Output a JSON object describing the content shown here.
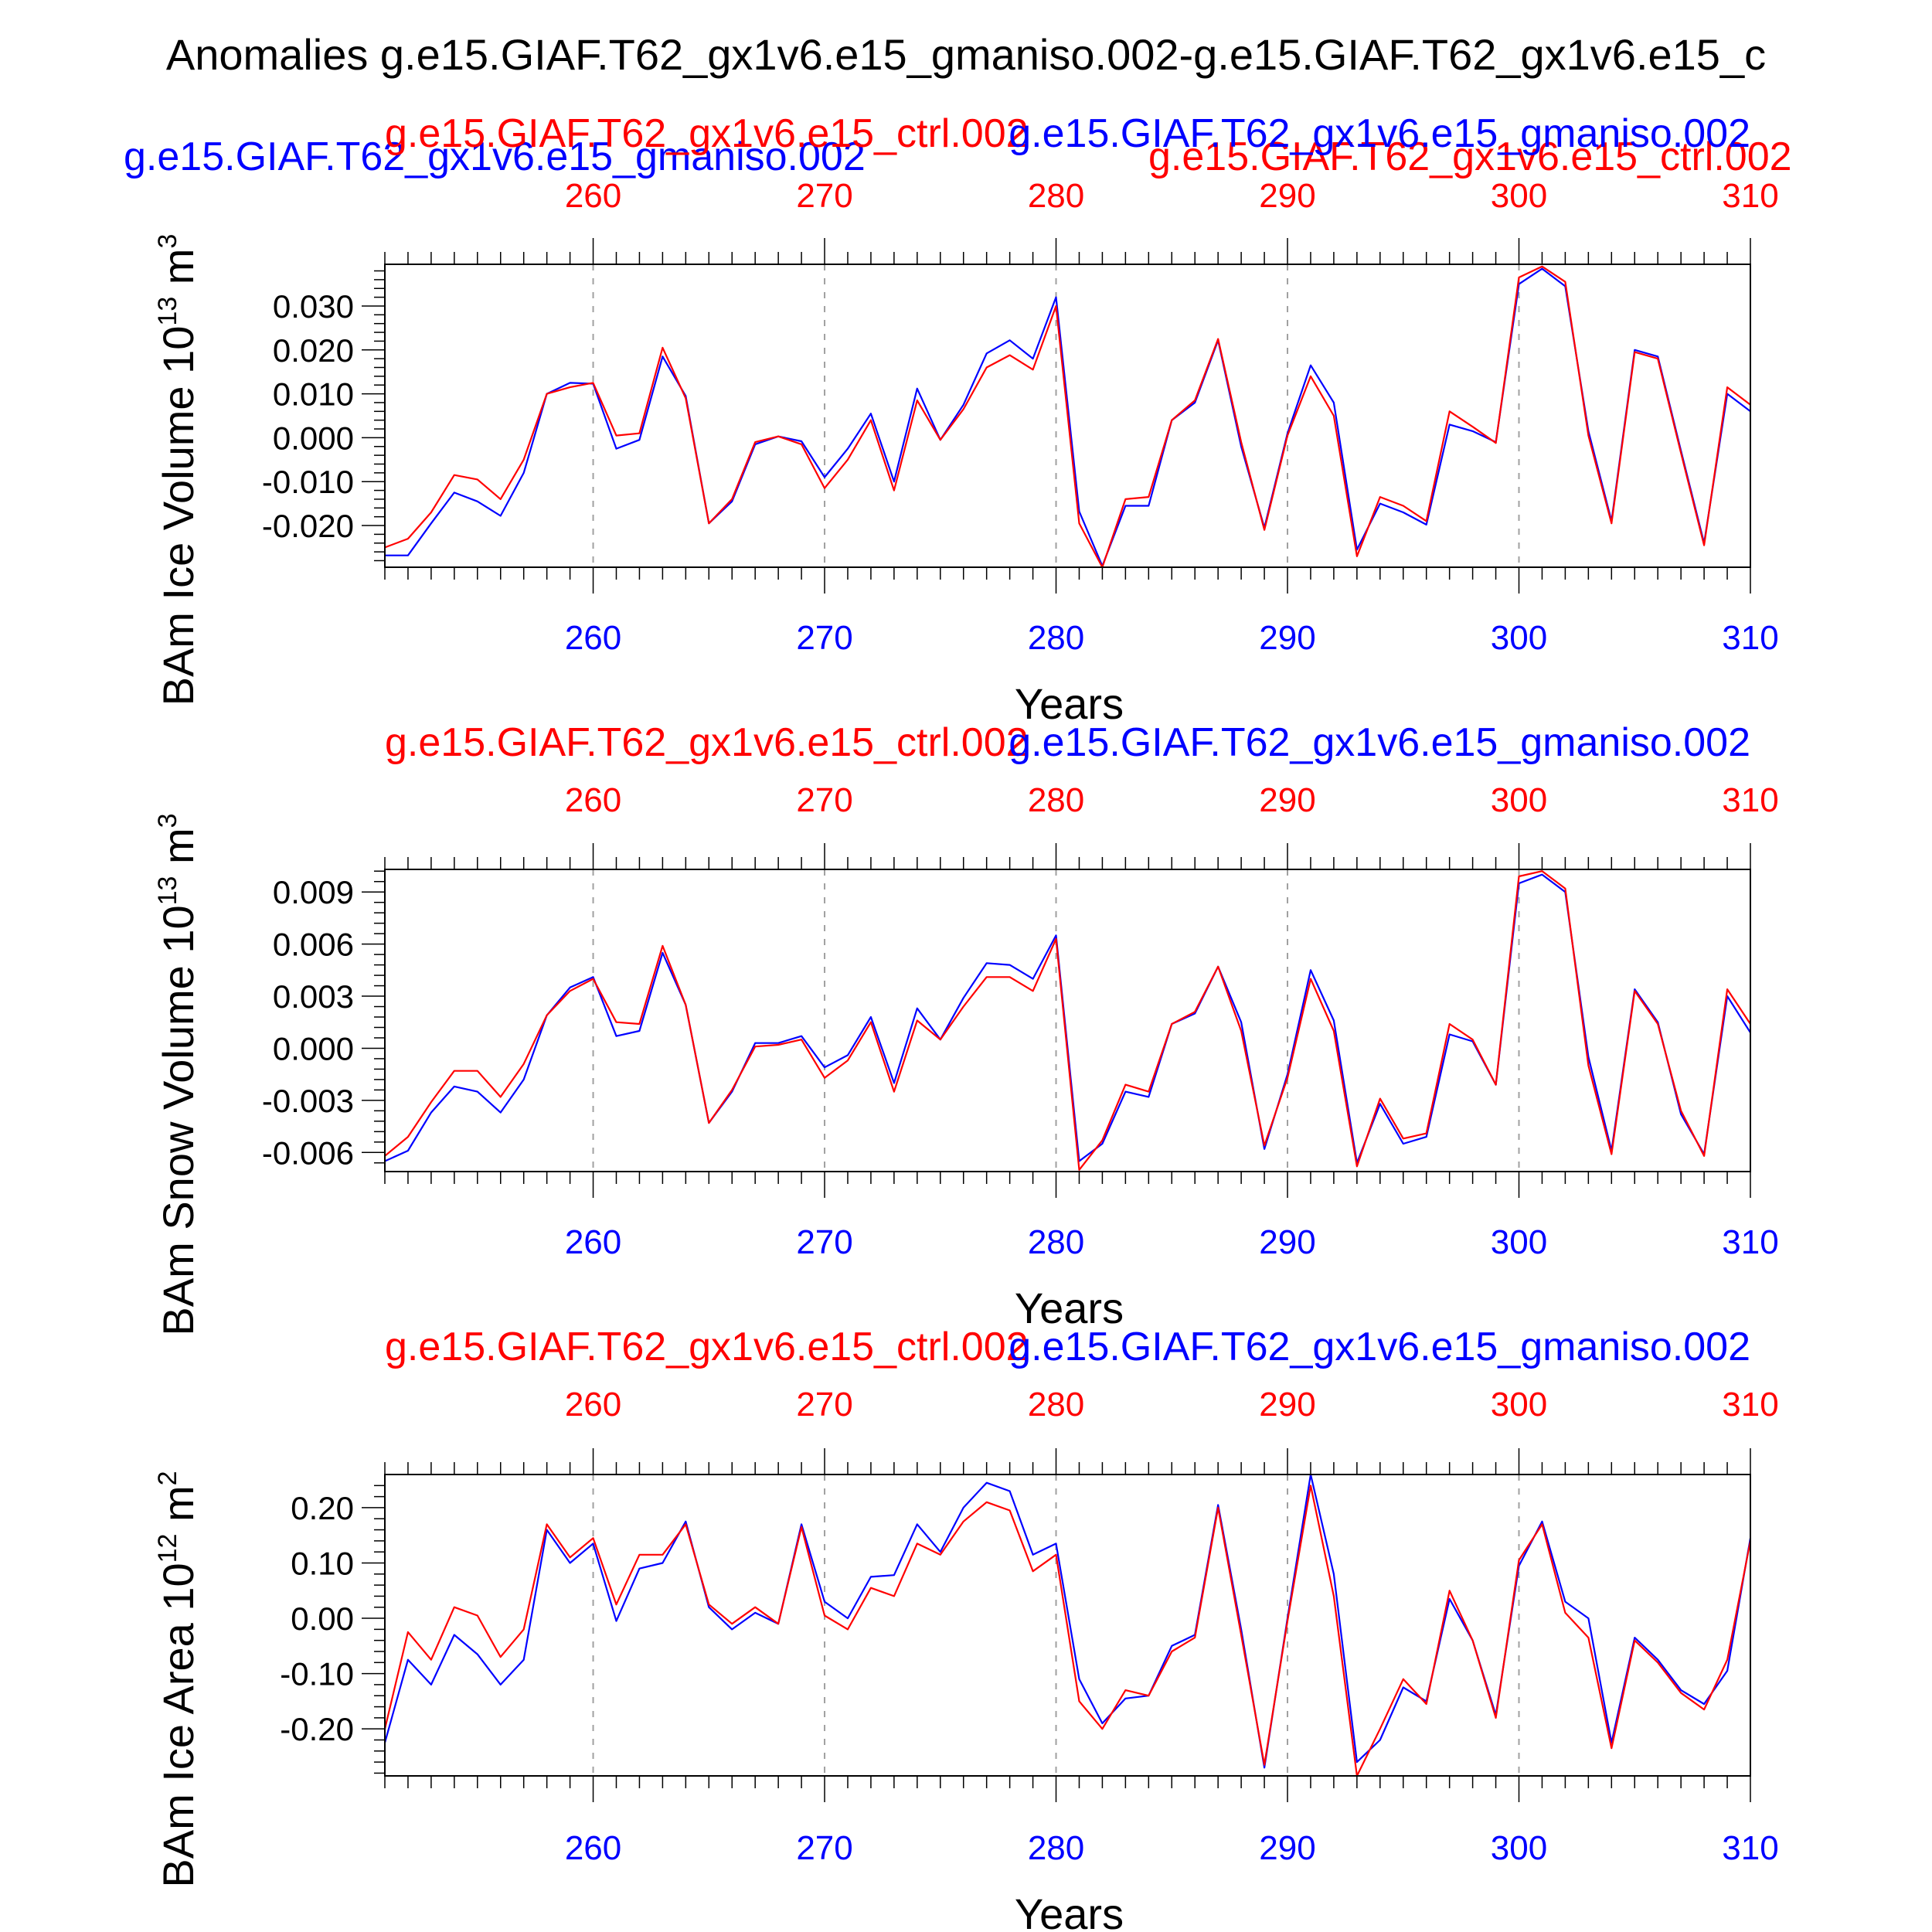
{
  "colors": {
    "series_a": "#0000ff",
    "series_b": "#ff0000",
    "axes": "#000000",
    "grid": "#a0a0a0"
  },
  "figure": {
    "title": "Anomalies g.e15.GIAF.T62_gx1v6.e15_gmaniso.002-g.e15.GIAF.T62_gx1v6.e15_c",
    "subtitle_a": "g.e15.GIAF.T62_gx1v6.e15_gmaniso.002",
    "subtitle_b": "g.e15.GIAF.T62_gx1v6.e15_ctrl.002",
    "panel_label_b": "g.e15.GIAF.T62_gx1v6.e15_ctrl.002",
    "panel_label_a": "g.e15.GIAF.T62_gx1v6.e15_gmaniso.002"
  },
  "chart_data": [
    {
      "type": "line",
      "ylabel": "BAm Ice Volume 10^13 m^3",
      "ylabel_main": "BAm Ice Volume 10",
      "ylabel_exp": "13",
      "ylabel_unit": " m",
      "ylabel_unit_exp": "3",
      "xlabel": "Years",
      "xlim": [
        251,
        310
      ],
      "ylim": [
        -0.0295,
        0.0395
      ],
      "x_ticks": [
        260,
        270,
        280,
        290,
        300,
        310
      ],
      "x_tick_labels": [
        "260",
        "270",
        "280",
        "290",
        "300",
        "310"
      ],
      "y_ticks": [
        -0.02,
        -0.01,
        0.0,
        0.01,
        0.02,
        0.03
      ],
      "y_tick_labels": [
        "-0.020",
        "-0.010",
        "0.000",
        "0.010",
        "0.020",
        "0.030"
      ],
      "y_minor_step": 0.002,
      "x_start": 251,
      "series": [
        {
          "name": "g.e15.GIAF.T62_gx1v6.e15_gmaniso.002",
          "values": [
            -0.0268,
            -0.0268,
            -0.0195,
            -0.0125,
            -0.0145,
            -0.0178,
            -0.008,
            0.01,
            0.0125,
            0.0123,
            -0.0025,
            -0.0005,
            0.0185,
            0.0095,
            -0.0195,
            -0.0145,
            -0.0015,
            0.0003,
            -0.0008,
            -0.009,
            -0.0025,
            0.0055,
            -0.01,
            0.0112,
            -0.0005,
            0.0075,
            0.0192,
            0.0222,
            0.018,
            0.032,
            -0.0168,
            -0.0292,
            -0.0155,
            -0.0155,
            0.004,
            0.008,
            0.0222,
            -0.002,
            -0.0205,
            0.001,
            0.0165,
            0.008,
            -0.0255,
            -0.015,
            -0.017,
            -0.0198,
            0.003,
            0.0015,
            -0.001,
            0.035,
            0.0385,
            0.0345,
            0.0015,
            -0.019,
            0.02,
            0.0185,
            -0.003,
            -0.024,
            0.01,
            0.006
          ]
        },
        {
          "name": "g.e15.GIAF.T62_gx1v6.e15_ctrl.002",
          "values": [
            -0.025,
            -0.023,
            -0.017,
            -0.0085,
            -0.0095,
            -0.014,
            -0.005,
            0.01,
            0.0115,
            0.0125,
            0.0005,
            0.001,
            0.0205,
            0.009,
            -0.0195,
            -0.014,
            -0.001,
            0.0003,
            -0.0015,
            -0.0115,
            -0.005,
            0.004,
            -0.012,
            0.0085,
            -0.0005,
            0.0065,
            0.016,
            0.0188,
            0.0155,
            0.03,
            -0.0195,
            -0.0295,
            -0.014,
            -0.0135,
            0.004,
            0.0085,
            0.0225,
            -0.001,
            -0.021,
            0.0005,
            0.014,
            0.005,
            -0.027,
            -0.0135,
            -0.0155,
            -0.019,
            0.006,
            0.0025,
            -0.0012,
            0.0365,
            0.039,
            0.0355,
            0.0005,
            -0.0195,
            0.0195,
            0.018,
            -0.0035,
            -0.0245,
            0.0115,
            0.0075
          ]
        }
      ]
    },
    {
      "type": "line",
      "ylabel": "BAm Snow Volume 10^13 m^3",
      "ylabel_main": "BAm Snow Volume 10",
      "ylabel_exp": "13",
      "ylabel_unit": " m",
      "ylabel_unit_exp": "3",
      "xlabel": "Years",
      "xlim": [
        251,
        310
      ],
      "ylim": [
        -0.0071,
        0.0103
      ],
      "x_ticks": [
        260,
        270,
        280,
        290,
        300,
        310
      ],
      "x_tick_labels": [
        "260",
        "270",
        "280",
        "290",
        "300",
        "310"
      ],
      "y_ticks": [
        -0.006,
        -0.003,
        0.0,
        0.003,
        0.006,
        0.009
      ],
      "y_tick_labels": [
        "-0.006",
        "-0.003",
        "0.000",
        "0.003",
        "0.006",
        "0.009"
      ],
      "y_minor_step": 0.0006,
      "x_start": 251,
      "series": [
        {
          "name": "g.e15.GIAF.T62_gx1v6.e15_gmaniso.002",
          "values": [
            -0.0065,
            -0.0059,
            -0.0037,
            -0.0022,
            -0.0025,
            -0.0037,
            -0.0018,
            0.0019,
            0.0035,
            0.0041,
            0.0007,
            0.001,
            0.0055,
            0.0025,
            -0.0043,
            -0.0025,
            0.0003,
            0.0003,
            0.0007,
            -0.0011,
            -0.0004,
            0.0018,
            -0.002,
            0.0023,
            0.0005,
            0.0029,
            0.0049,
            0.0048,
            0.004,
            0.0065,
            -0.0065,
            -0.0055,
            -0.0025,
            -0.0028,
            0.0014,
            0.002,
            0.0047,
            0.0015,
            -0.0058,
            -0.0015,
            0.0045,
            0.0016,
            -0.0066,
            -0.0032,
            -0.0055,
            -0.0051,
            0.0008,
            0.0004,
            -0.0021,
            0.0095,
            0.01,
            0.009,
            -0.0005,
            -0.0059,
            0.0034,
            0.0015,
            -0.0038,
            -0.0061,
            0.003,
            0.0009
          ]
        },
        {
          "name": "g.e15.GIAF.T62_gx1v6.e15_ctrl.002",
          "values": [
            -0.0062,
            -0.0051,
            -0.0031,
            -0.0013,
            -0.0013,
            -0.0028,
            -0.0009,
            0.0019,
            0.0033,
            0.004,
            0.0015,
            0.0014,
            0.0059,
            0.0025,
            -0.0043,
            -0.0024,
            0.0001,
            0.0002,
            0.0005,
            -0.0017,
            -0.0007,
            0.0015,
            -0.0025,
            0.0016,
            0.0005,
            0.0024,
            0.0041,
            0.0041,
            0.0033,
            0.0063,
            -0.007,
            -0.0053,
            -0.0021,
            -0.0025,
            0.0014,
            0.0021,
            0.0047,
            0.001,
            -0.0056,
            -0.0017,
            0.004,
            0.001,
            -0.0068,
            -0.0029,
            -0.0052,
            -0.0049,
            0.0014,
            0.0005,
            -0.0021,
            0.0099,
            0.0102,
            0.0092,
            -0.001,
            -0.0061,
            0.0033,
            0.0014,
            -0.0036,
            -0.0062,
            0.0034,
            0.0014
          ]
        }
      ]
    },
    {
      "type": "line",
      "ylabel": "BAm Ice Area 10^12 m^2",
      "ylabel_main": "BAm Ice Area 10",
      "ylabel_exp": "12",
      "ylabel_unit": " m",
      "ylabel_unit_exp": "2",
      "xlabel": "Years",
      "xlim": [
        251,
        310
      ],
      "ylim": [
        -0.285,
        0.26
      ],
      "x_ticks": [
        260,
        270,
        280,
        290,
        300,
        310
      ],
      "x_tick_labels": [
        "260",
        "270",
        "280",
        "290",
        "300",
        "310"
      ],
      "y_ticks": [
        -0.2,
        -0.1,
        0.0,
        0.1,
        0.2
      ],
      "y_tick_labels": [
        "-0.20",
        "-0.10",
        "0.00",
        "0.10",
        "0.20"
      ],
      "y_minor_step": 0.02,
      "x_start": 251,
      "series": [
        {
          "name": "g.e15.GIAF.T62_gx1v6.e15_gmaniso.002",
          "values": [
            -0.225,
            -0.075,
            -0.12,
            -0.03,
            -0.065,
            -0.12,
            -0.075,
            0.16,
            0.1,
            0.135,
            -0.005,
            0.09,
            0.1,
            0.175,
            0.02,
            -0.02,
            0.01,
            -0.01,
            0.17,
            0.03,
            0.0,
            0.075,
            0.078,
            0.17,
            0.12,
            0.2,
            0.245,
            0.23,
            0.115,
            0.135,
            -0.11,
            -0.19,
            -0.145,
            -0.14,
            -0.05,
            -0.03,
            0.205,
            -0.02,
            -0.27,
            0.0,
            0.26,
            0.08,
            -0.26,
            -0.22,
            -0.125,
            -0.15,
            0.035,
            -0.04,
            -0.175,
            0.095,
            0.175,
            0.03,
            0.0,
            -0.225,
            -0.035,
            -0.075,
            -0.13,
            -0.155,
            -0.095,
            0.145
          ]
        },
        {
          "name": "g.e15.GIAF.T62_gx1v6.e15_ctrl.002",
          "values": [
            -0.2,
            -0.025,
            -0.075,
            0.02,
            0.005,
            -0.07,
            -0.02,
            0.17,
            0.11,
            0.145,
            0.025,
            0.115,
            0.115,
            0.17,
            0.025,
            -0.01,
            0.02,
            -0.01,
            0.165,
            0.005,
            -0.02,
            0.055,
            0.04,
            0.135,
            0.115,
            0.175,
            0.21,
            0.195,
            0.085,
            0.115,
            -0.15,
            -0.2,
            -0.13,
            -0.14,
            -0.06,
            -0.035,
            0.2,
            -0.03,
            -0.265,
            -0.005,
            0.24,
            0.04,
            -0.285,
            -0.2,
            -0.11,
            -0.155,
            0.05,
            -0.04,
            -0.18,
            0.105,
            0.17,
            0.01,
            -0.035,
            -0.235,
            -0.04,
            -0.08,
            -0.135,
            -0.165,
            -0.075,
            0.14
          ]
        }
      ]
    }
  ]
}
